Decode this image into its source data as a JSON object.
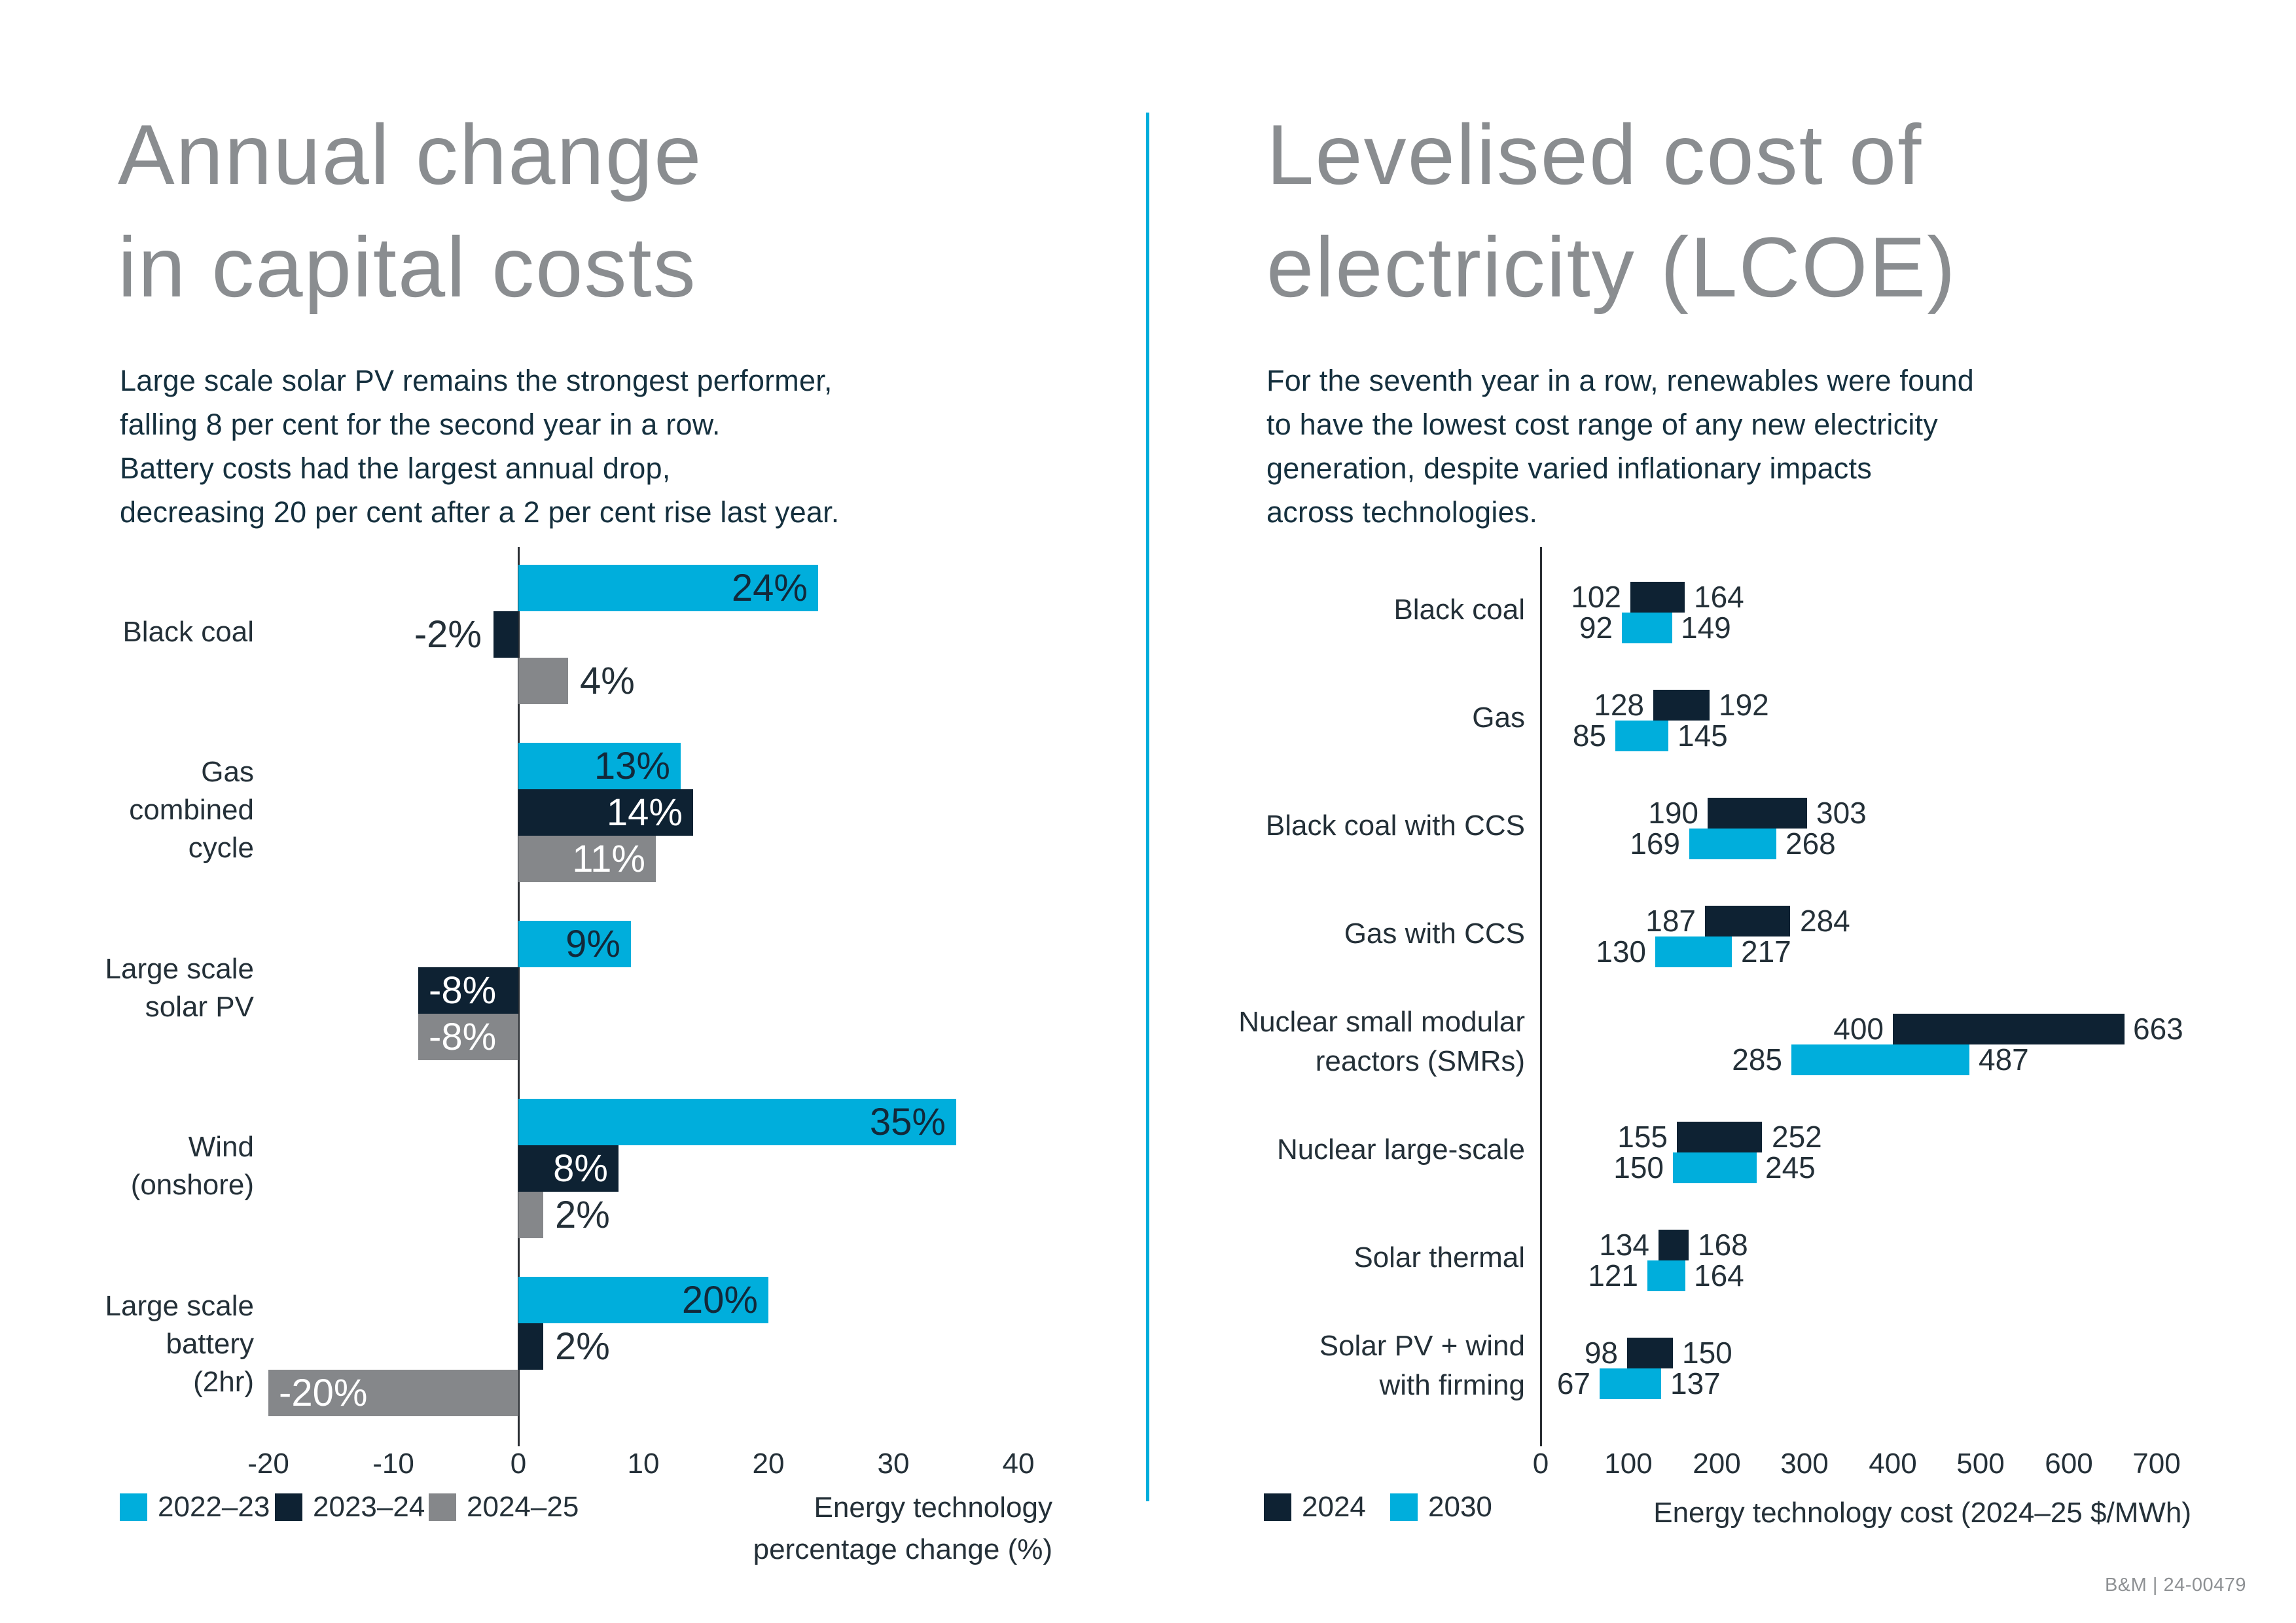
{
  "page": {
    "footer": "B&M | 24-00479"
  },
  "colors": {
    "cyan": "#00AEDC",
    "navy": "#0E2233",
    "gray": "#85878A",
    "title_gray": "#8A8D90",
    "body_text": "#15303E",
    "label_text": "#243038",
    "axis_line": "#2A2E33",
    "divider": "#00AEDC",
    "footer_text": "#8E9194"
  },
  "left_panel": {
    "title": "Annual change\nin capital costs",
    "subtitle": "Large scale solar PV remains the strongest performer,\nfalling 8 per cent for the second year in a row.\nBattery costs had the largest annual drop,\ndecreasing 20 per cent after a 2 per cent rise last year.",
    "legend": [
      {
        "label": "2022–23",
        "color": "#00AEDC"
      },
      {
        "label": "2023–24",
        "color": "#0E2233"
      },
      {
        "label": "2024–25",
        "color": "#85878A"
      }
    ],
    "axis_caption": "Energy technology\npercentage change (%)"
  },
  "right_panel": {
    "title": "Levelised cost of\nelectricity (LCOE)",
    "subtitle": "For the seventh year in a row, renewables were found\nto have the lowest cost range of any new electricity\ngeneration, despite varied inflationary impacts\nacross technologies.",
    "legend": [
      {
        "label": "2024",
        "color": "#0E2233"
      },
      {
        "label": "2030",
        "color": "#00AEDC"
      }
    ],
    "axis_caption": "Energy technology cost (2024–25 $/MWh)"
  },
  "chart_data": [
    {
      "type": "bar",
      "orientation": "horizontal",
      "title": "Annual change in capital costs",
      "xlabel": "Energy technology percentage change (%)",
      "xlim": [
        -20,
        40
      ],
      "xticks": [
        -20,
        -10,
        0,
        10,
        20,
        30,
        40
      ],
      "unit": "%",
      "grid": false,
      "legend_position": "bottom-left",
      "categories": [
        [
          "Black coal"
        ],
        [
          "Gas",
          "combined",
          "cycle"
        ],
        [
          "Large scale",
          "solar PV"
        ],
        [
          "Wind",
          "(onshore)"
        ],
        [
          "Large scale",
          "battery",
          "(2hr)"
        ]
      ],
      "series": [
        {
          "name": "2022–23",
          "color": "#00AEDC",
          "inside_label_color": "#12293A",
          "values": [
            24,
            13,
            9,
            35,
            20
          ]
        },
        {
          "name": "2023–24",
          "color": "#0E2233",
          "inside_label_color": "#FFFFFF",
          "values": [
            -2,
            14,
            -8,
            8,
            2
          ]
        },
        {
          "name": "2024–25",
          "color": "#85878A",
          "inside_label_color": "#FFFFFF",
          "values": [
            4,
            11,
            -8,
            2,
            -20
          ]
        }
      ]
    },
    {
      "type": "bar",
      "subtype": "range",
      "orientation": "horizontal",
      "title": "Levelised cost of electricity (LCOE)",
      "xlabel": "Energy technology cost (2024–25 $/MWh)",
      "xlim": [
        0,
        700
      ],
      "xticks": [
        0,
        100,
        200,
        300,
        400,
        500,
        600,
        700
      ],
      "unit": "$/MWh",
      "grid": false,
      "legend_position": "bottom-left",
      "categories": [
        [
          "Black coal"
        ],
        [
          "Gas"
        ],
        [
          "Black coal with CCS"
        ],
        [
          "Gas with CCS"
        ],
        [
          "Nuclear small modular",
          "reactors (SMRs)"
        ],
        [
          "Nuclear large-scale"
        ],
        [
          "Solar thermal"
        ],
        [
          "Solar PV + wind",
          "with firming"
        ]
      ],
      "series": [
        {
          "name": "2024",
          "color": "#0E2233",
          "ranges": [
            [
              102,
              164
            ],
            [
              128,
              192
            ],
            [
              190,
              303
            ],
            [
              187,
              284
            ],
            [
              400,
              663
            ],
            [
              155,
              252
            ],
            [
              134,
              168
            ],
            [
              98,
              150
            ]
          ]
        },
        {
          "name": "2030",
          "color": "#00AEDC",
          "ranges": [
            [
              92,
              149
            ],
            [
              85,
              145
            ],
            [
              169,
              268
            ],
            [
              130,
              217
            ],
            [
              285,
              487
            ],
            [
              150,
              245
            ],
            [
              121,
              164
            ],
            [
              67,
              137
            ]
          ]
        }
      ]
    }
  ]
}
